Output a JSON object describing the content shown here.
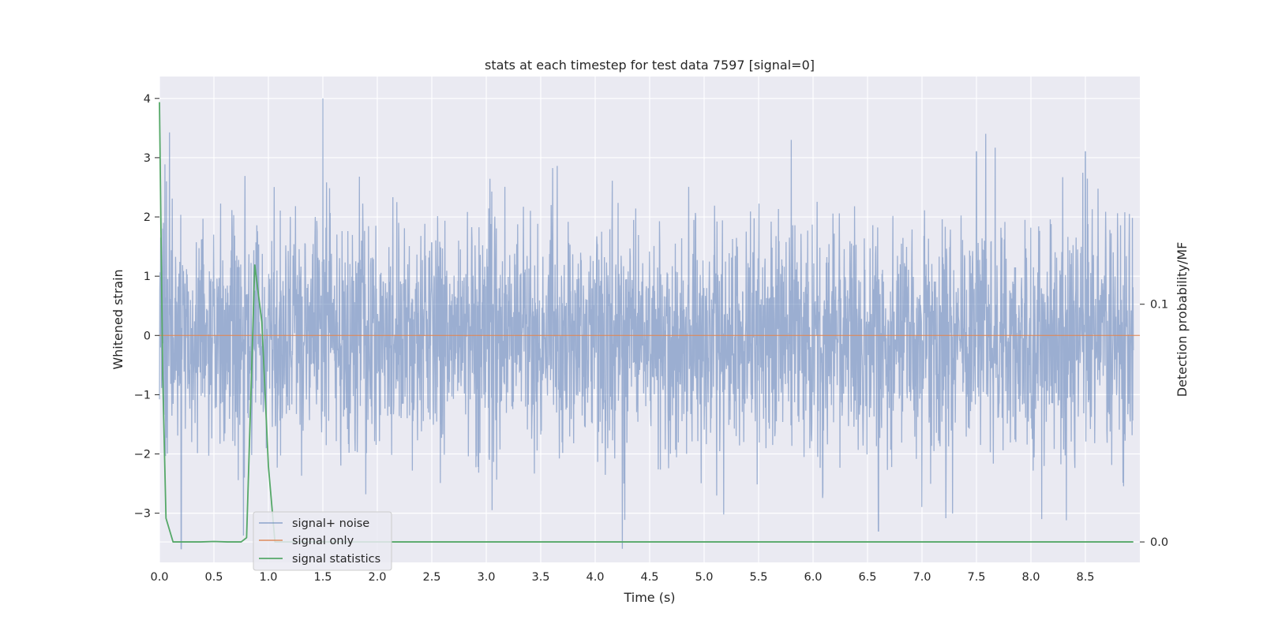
{
  "chart_data": {
    "type": "line",
    "title": "stats at each timestep for test data 7597 [signal=0]",
    "xlabel": "Time (s)",
    "ylabel": "Whitened strain",
    "y2label": "Detection probability/MF",
    "xlim": [
      0,
      9.0
    ],
    "ylim": [
      -3.83,
      4.37
    ],
    "y2lim": [
      -0.0086,
      0.1958
    ],
    "xticks": [
      "0.0",
      "0.5",
      "1.0",
      "1.5",
      "2.0",
      "2.5",
      "3.0",
      "3.5",
      "4.0",
      "4.5",
      "5.0",
      "5.5",
      "6.0",
      "6.5",
      "7.0",
      "7.5",
      "8.0",
      "8.5"
    ],
    "yticks": [
      "4",
      "3",
      "2",
      "1",
      "0",
      "−1",
      "−2",
      "−3"
    ],
    "y2ticks": [
      "0.1",
      "0.0"
    ],
    "grid": true,
    "legend_position": "lower-left",
    "series": [
      {
        "name": "signal+ noise",
        "axis": "left",
        "color": "#4c72b0",
        "description": "whitened noise, approx. unit variance, peaks near x=1.5 (4.0), x=5.8 (3.3), x=7.5 (3.1), x=8.5 (3.1); troughs near x=4.25 (-3.6), x=6.6 (-3.3)"
      },
      {
        "name": "signal only",
        "axis": "left",
        "color": "#dd8452",
        "values_constant": 0
      },
      {
        "name": "signal statistics",
        "axis": "right",
        "color": "#55a868",
        "x": [
          0.0,
          0.03,
          0.06,
          0.125,
          0.25,
          0.375,
          0.5,
          0.625,
          0.75,
          0.8,
          0.875,
          0.94,
          1.0,
          1.06,
          1.125,
          1.25,
          1.5,
          2.0,
          3.0,
          4.0,
          5.0,
          6.0,
          7.0,
          8.0,
          8.94
        ],
        "values": [
          0.185,
          0.07,
          0.01,
          0.0,
          0.0,
          0.0,
          0.0002,
          0.0,
          0.0,
          0.0018,
          0.1165,
          0.0925,
          0.032,
          0.0,
          0.0,
          0.0,
          0.0,
          0.0,
          0.0,
          0.0,
          0.0,
          0.0,
          0.0,
          0.0,
          0.0
        ]
      }
    ]
  }
}
